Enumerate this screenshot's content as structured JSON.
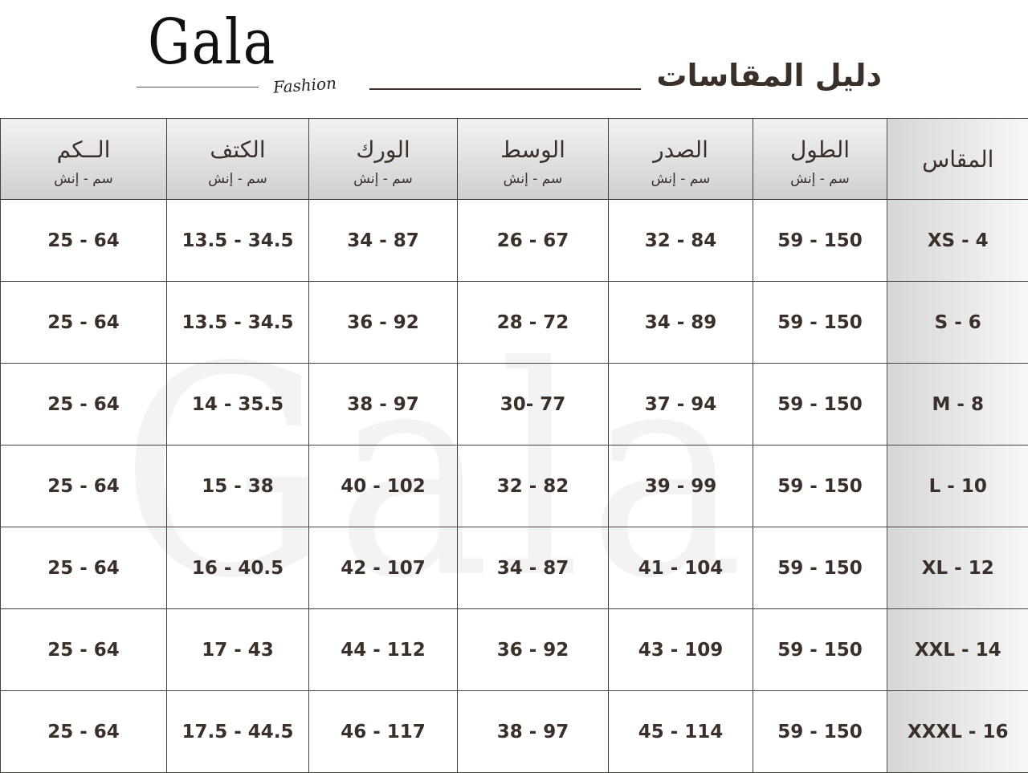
{
  "brand": {
    "name": "Gala",
    "sub": "Fashion"
  },
  "title": "دليل المقاسات",
  "unit_label": "سم - إنش",
  "headers": [
    "الــكم",
    "الكتف",
    "الورك",
    "الوسط",
    "الصدر",
    "الطول"
  ],
  "size_header": "المقاس",
  "rows": [
    {
      "size": "XS - 4",
      "cells": [
        "25 - 64",
        "13.5 - 34.5",
        "34 - 87",
        "26 - 67",
        "32 - 84",
        "59 - 150"
      ]
    },
    {
      "size": "S - 6",
      "cells": [
        "25 - 64",
        "13.5 - 34.5",
        "36 - 92",
        "28 - 72",
        "34 - 89",
        "59 - 150"
      ]
    },
    {
      "size": "M - 8",
      "cells": [
        "25 - 64",
        "14 - 35.5",
        "38 - 97",
        "30- 77",
        "37 - 94",
        "59 - 150"
      ]
    },
    {
      "size": "L - 10",
      "cells": [
        "25 - 64",
        "15 - 38",
        "40 - 102",
        "32 - 82",
        "39 - 99",
        "59 - 150"
      ]
    },
    {
      "size": "XL - 12",
      "cells": [
        "25 - 64",
        "16 - 40.5",
        "42 - 107",
        "34 - 87",
        "41 - 104",
        "59 - 150"
      ]
    },
    {
      "size": "XXL - 14",
      "cells": [
        "25 - 64",
        "17 - 43",
        "44 - 112",
        "36 - 92",
        "43 - 109",
        "59 - 150"
      ]
    },
    {
      "size": "XXXL - 16",
      "cells": [
        "25 - 64",
        "17.5 - 44.5",
        "46 - 117",
        "38 - 97",
        "45 - 114",
        "59 - 150"
      ]
    }
  ],
  "colors": {
    "text": "#3b2f29",
    "header_bg": "#d9d9d9"
  }
}
